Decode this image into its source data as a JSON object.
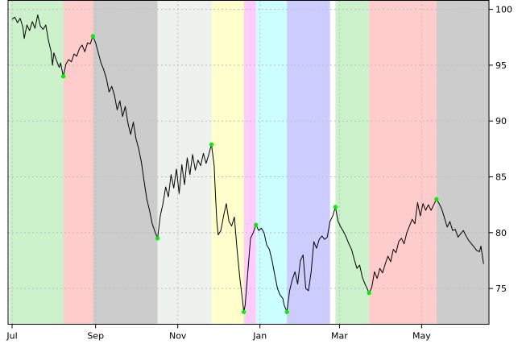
{
  "chart_data": {
    "type": "line",
    "title": "",
    "xlabel": "",
    "ylabel": "",
    "ylim": [
      71.8,
      100.8
    ],
    "y_ticks": [
      75,
      80,
      85,
      90,
      95,
      100
    ],
    "x_ticks": [
      {
        "label": "Jul",
        "day": 0
      },
      {
        "label": "Sep",
        "day": 62
      },
      {
        "label": "Nov",
        "day": 123
      },
      {
        "label": "Jan",
        "day": 184
      },
      {
        "label": "Mar",
        "day": 243
      },
      {
        "label": "May",
        "day": 304
      }
    ],
    "xlim": [
      -3,
      354
    ],
    "grid": true,
    "y_axis_side": "right",
    "line_color": "#000000",
    "marker_color": "#00ee00",
    "regimes": [
      {
        "start": -2,
        "end": 38,
        "color": "#ccf2cc"
      },
      {
        "start": 38,
        "end": 60,
        "color": "#ffcccc"
      },
      {
        "start": 60,
        "end": 108,
        "color": "#cccccc"
      },
      {
        "start": 108,
        "end": 148,
        "color": "#eef2ee"
      },
      {
        "start": 148,
        "end": 172,
        "color": "#ffffcc"
      },
      {
        "start": 172,
        "end": 181,
        "color": "#ffccff"
      },
      {
        "start": 181,
        "end": 204,
        "color": "#ccffff"
      },
      {
        "start": 204,
        "end": 236,
        "color": "#ccccff"
      },
      {
        "start": 240,
        "end": 265,
        "color": "#ccf2cc"
      },
      {
        "start": 265,
        "end": 315,
        "color": "#ffcccc"
      },
      {
        "start": 315,
        "end": 354,
        "color": "#cccccc"
      }
    ],
    "turning_points": [
      {
        "day": 38,
        "value": 94.0
      },
      {
        "day": 60,
        "value": 97.6
      },
      {
        "day": 108,
        "value": 79.5
      },
      {
        "day": 148,
        "value": 87.9
      },
      {
        "day": 172,
        "value": 72.9
      },
      {
        "day": 181,
        "value": 80.7
      },
      {
        "day": 204,
        "value": 72.9
      },
      {
        "day": 240,
        "value": 82.3
      },
      {
        "day": 265,
        "value": 74.6
      },
      {
        "day": 315,
        "value": 83.0
      }
    ],
    "series": [
      {
        "points": [
          [
            0,
            99.1
          ],
          [
            2,
            99.3
          ],
          [
            4,
            98.8
          ],
          [
            6,
            99.2
          ],
          [
            8,
            98.4
          ],
          [
            9,
            97.4
          ],
          [
            11,
            98.6
          ],
          [
            13,
            98.1
          ],
          [
            15,
            98.9
          ],
          [
            17,
            98.3
          ],
          [
            19,
            99.5
          ],
          [
            21,
            98.5
          ],
          [
            23,
            98.2
          ],
          [
            25,
            98.6
          ],
          [
            27,
            97.2
          ],
          [
            29,
            96.2
          ],
          [
            30,
            95.0
          ],
          [
            31,
            96.1
          ],
          [
            33,
            95.4
          ],
          [
            35,
            94.8
          ],
          [
            36,
            95.2
          ],
          [
            38,
            94.0
          ],
          [
            40,
            95.1
          ],
          [
            42,
            95.5
          ],
          [
            44,
            95.3
          ],
          [
            46,
            96.0
          ],
          [
            48,
            95.8
          ],
          [
            50,
            96.5
          ],
          [
            52,
            96.8
          ],
          [
            54,
            96.2
          ],
          [
            56,
            97.0
          ],
          [
            58,
            96.9
          ],
          [
            60,
            97.6
          ],
          [
            62,
            97.0
          ],
          [
            64,
            96.1
          ],
          [
            66,
            95.2
          ],
          [
            68,
            94.6
          ],
          [
            70,
            93.8
          ],
          [
            72,
            92.6
          ],
          [
            74,
            93.1
          ],
          [
            76,
            92.3
          ],
          [
            78,
            91.0
          ],
          [
            80,
            91.8
          ],
          [
            82,
            90.4
          ],
          [
            84,
            91.3
          ],
          [
            86,
            89.8
          ],
          [
            88,
            88.8
          ],
          [
            90,
            89.9
          ],
          [
            92,
            88.4
          ],
          [
            94,
            87.5
          ],
          [
            96,
            86.3
          ],
          [
            98,
            84.6
          ],
          [
            100,
            83.0
          ],
          [
            102,
            82.0
          ],
          [
            104,
            80.8
          ],
          [
            106,
            80.1
          ],
          [
            108,
            79.5
          ],
          [
            110,
            81.5
          ],
          [
            112,
            82.6
          ],
          [
            114,
            84.1
          ],
          [
            116,
            83.2
          ],
          [
            118,
            85.2
          ],
          [
            120,
            84.0
          ],
          [
            122,
            85.7
          ],
          [
            124,
            83.5
          ],
          [
            126,
            86.1
          ],
          [
            128,
            84.3
          ],
          [
            130,
            86.7
          ],
          [
            132,
            85.2
          ],
          [
            134,
            87.0
          ],
          [
            136,
            85.6
          ],
          [
            138,
            86.5
          ],
          [
            140,
            86.0
          ],
          [
            142,
            87.1
          ],
          [
            144,
            86.2
          ],
          [
            146,
            87.0
          ],
          [
            148,
            87.9
          ],
          [
            150,
            86.0
          ],
          [
            151,
            83.3
          ],
          [
            152,
            81.0
          ],
          [
            153,
            79.8
          ],
          [
            155,
            80.2
          ],
          [
            157,
            81.5
          ],
          [
            159,
            82.6
          ],
          [
            161,
            81.0
          ],
          [
            163,
            80.6
          ],
          [
            165,
            81.4
          ],
          [
            167,
            78.5
          ],
          [
            169,
            76.0
          ],
          [
            171,
            74.0
          ],
          [
            172,
            72.9
          ],
          [
            173,
            73.5
          ],
          [
            175,
            76.5
          ],
          [
            177,
            79.5
          ],
          [
            179,
            80.0
          ],
          [
            181,
            80.7
          ],
          [
            183,
            80.2
          ],
          [
            185,
            80.4
          ],
          [
            187,
            80.0
          ],
          [
            189,
            78.9
          ],
          [
            191,
            78.5
          ],
          [
            193,
            77.5
          ],
          [
            195,
            76.2
          ],
          [
            197,
            75.0
          ],
          [
            199,
            74.4
          ],
          [
            201,
            74.1
          ],
          [
            202,
            73.5
          ],
          [
            204,
            72.9
          ],
          [
            206,
            74.8
          ],
          [
            208,
            75.8
          ],
          [
            210,
            76.5
          ],
          [
            212,
            75.4
          ],
          [
            214,
            77.5
          ],
          [
            216,
            78.0
          ],
          [
            218,
            75.0
          ],
          [
            220,
            74.8
          ],
          [
            222,
            76.5
          ],
          [
            224,
            79.2
          ],
          [
            226,
            78.6
          ],
          [
            228,
            79.4
          ],
          [
            230,
            79.7
          ],
          [
            232,
            79.4
          ],
          [
            234,
            79.6
          ],
          [
            236,
            81.0
          ],
          [
            238,
            81.5
          ],
          [
            240,
            82.3
          ],
          [
            242,
            81.0
          ],
          [
            244,
            80.5
          ],
          [
            246,
            80.1
          ],
          [
            248,
            79.6
          ],
          [
            250,
            79.0
          ],
          [
            252,
            78.5
          ],
          [
            254,
            77.6
          ],
          [
            256,
            76.8
          ],
          [
            258,
            77.1
          ],
          [
            260,
            76.0
          ],
          [
            262,
            75.4
          ],
          [
            265,
            74.6
          ],
          [
            267,
            75.1
          ],
          [
            269,
            76.5
          ],
          [
            271,
            75.9
          ],
          [
            273,
            76.8
          ],
          [
            275,
            76.4
          ],
          [
            277,
            77.2
          ],
          [
            279,
            77.9
          ],
          [
            281,
            77.4
          ],
          [
            283,
            78.5
          ],
          [
            285,
            78.2
          ],
          [
            287,
            79.2
          ],
          [
            289,
            79.5
          ],
          [
            291,
            79.0
          ],
          [
            293,
            80.0
          ],
          [
            295,
            80.6
          ],
          [
            297,
            81.2
          ],
          [
            299,
            80.8
          ],
          [
            301,
            82.7
          ],
          [
            303,
            81.5
          ],
          [
            305,
            82.6
          ],
          [
            307,
            82.0
          ],
          [
            309,
            82.5
          ],
          [
            311,
            82.0
          ],
          [
            313,
            82.5
          ],
          [
            315,
            83.0
          ],
          [
            317,
            82.6
          ],
          [
            319,
            82.1
          ],
          [
            321,
            81.3
          ],
          [
            323,
            80.5
          ],
          [
            325,
            81.0
          ],
          [
            327,
            80.2
          ],
          [
            329,
            80.3
          ],
          [
            331,
            79.6
          ],
          [
            333,
            79.9
          ],
          [
            335,
            80.2
          ],
          [
            337,
            79.7
          ],
          [
            339,
            79.3
          ],
          [
            341,
            79.0
          ],
          [
            343,
            78.7
          ],
          [
            345,
            78.4
          ],
          [
            347,
            78.3
          ],
          [
            348,
            78.8
          ],
          [
            349,
            78.0
          ],
          [
            350,
            77.2
          ]
        ]
      }
    ]
  }
}
